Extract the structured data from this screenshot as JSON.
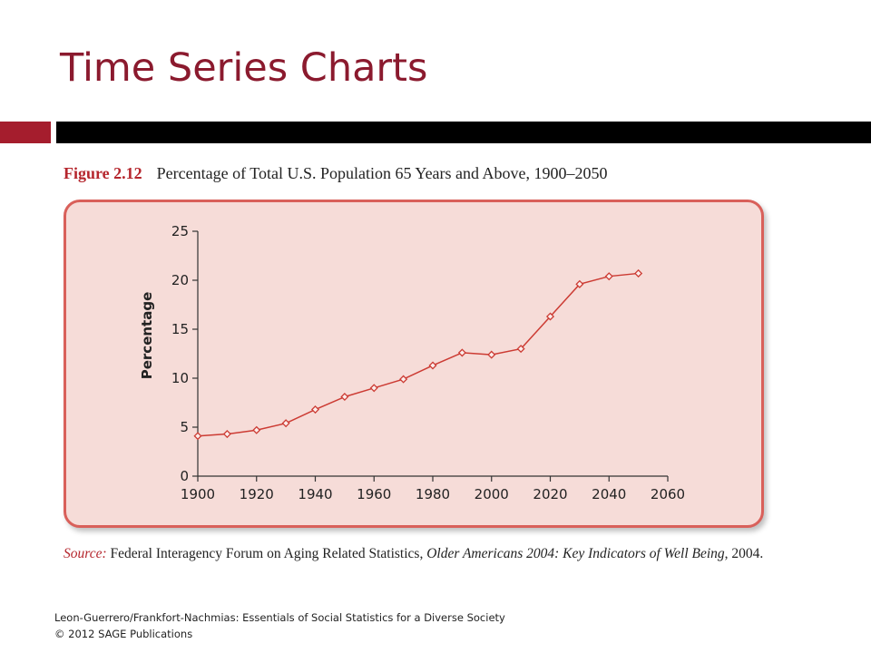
{
  "slide": {
    "title": "Time Series Charts",
    "accent_color": "#a51d2d"
  },
  "figure": {
    "number": "Figure 2.12",
    "caption": "Percentage of Total U.S. Population 65 Years and Above, 1900–2050"
  },
  "source": {
    "label": "Source:",
    "text_before": " Federal Interagency Forum on Aging Related Statistics, ",
    "title": "Older Americans 2004: Key Indicators of Well Being",
    "text_after": ", 2004."
  },
  "footer": {
    "line1": "Leon-Guerrero/Frankfort-Nachmias: Essentials of Social Statistics for a Diverse Society",
    "line2": "© 2012 SAGE Publications"
  },
  "chart_data": {
    "type": "line",
    "title": "",
    "xlabel": "",
    "ylabel": "Percentage",
    "xlim": [
      1900,
      2060
    ],
    "ylim": [
      0,
      25
    ],
    "xticks": [
      1900,
      1920,
      1940,
      1960,
      1980,
      2000,
      2020,
      2040,
      2060
    ],
    "yticks": [
      0,
      5,
      10,
      15,
      20,
      25
    ],
    "grid": false,
    "line_color": "#cc3b33",
    "panel_color": "#f6dcd8",
    "x": [
      1900,
      1910,
      1920,
      1930,
      1940,
      1950,
      1960,
      1970,
      1980,
      1990,
      2000,
      2010,
      2020,
      2030,
      2040,
      2050
    ],
    "y": [
      4.1,
      4.3,
      4.7,
      5.4,
      6.8,
      8.1,
      9.0,
      9.9,
      11.3,
      12.6,
      12.4,
      13.0,
      16.3,
      19.6,
      20.4,
      20.7
    ],
    "marker": "diamond"
  }
}
